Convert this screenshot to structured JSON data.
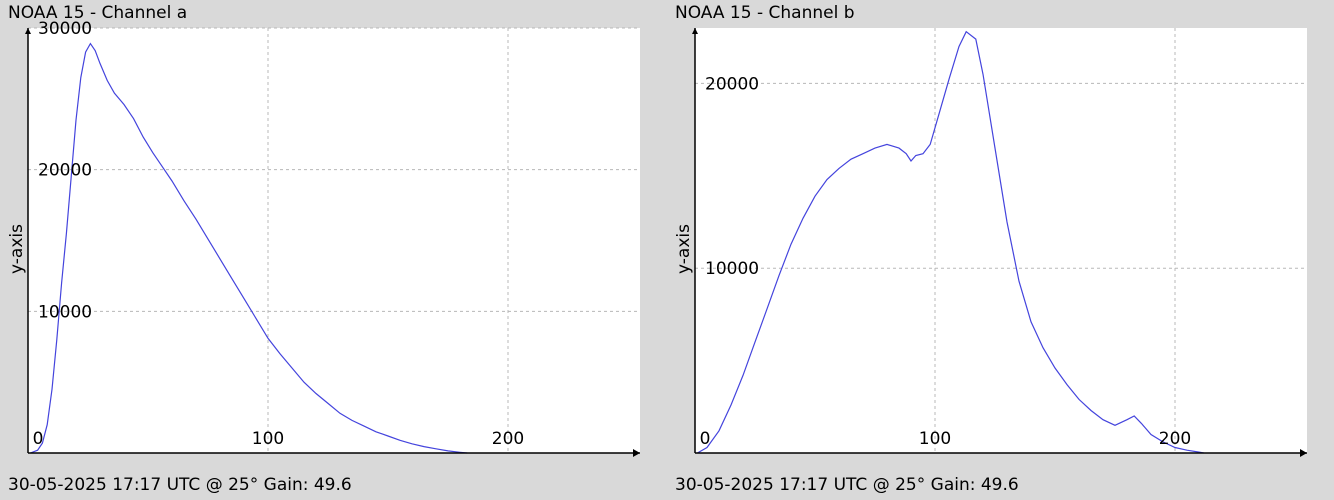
{
  "charts": [
    {
      "title": "NOAA 15 - Channel a",
      "footer": "30-05-2025 17:17 UTC @ 25° Gain: 49.6",
      "ylabel": "y-axis"
    },
    {
      "title": "NOAA 15 - Channel b",
      "footer": "30-05-2025 17:17 UTC @ 25° Gain: 49.6",
      "ylabel": "y-axis"
    }
  ],
  "chart_data": [
    {
      "type": "line",
      "title": "NOAA 15 - Channel a",
      "ylabel": "y-axis",
      "xlim": [
        0,
        255
      ],
      "ylim": [
        0,
        30000
      ],
      "xticks": [
        0,
        100,
        200
      ],
      "yticks": [
        10000,
        20000,
        30000
      ],
      "xtick_labels": [
        "0",
        "100",
        "200"
      ],
      "ytick_labels": [
        "10000",
        "20000",
        "30000"
      ],
      "grid": true,
      "line_color": "#4444dd",
      "points": [
        [
          1,
          0
        ],
        [
          4,
          200
        ],
        [
          6,
          700
        ],
        [
          8,
          2000
        ],
        [
          10,
          4500
        ],
        [
          12,
          8000
        ],
        [
          14,
          12000
        ],
        [
          16,
          15500
        ],
        [
          18,
          19500
        ],
        [
          20,
          23500
        ],
        [
          22,
          26500
        ],
        [
          24,
          28300
        ],
        [
          26,
          28900
        ],
        [
          28,
          28400
        ],
        [
          30,
          27500
        ],
        [
          33,
          26300
        ],
        [
          36,
          25400
        ],
        [
          40,
          24600
        ],
        [
          44,
          23600
        ],
        [
          48,
          22300
        ],
        [
          52,
          21200
        ],
        [
          56,
          20200
        ],
        [
          60,
          19200
        ],
        [
          65,
          17800
        ],
        [
          70,
          16500
        ],
        [
          75,
          15100
        ],
        [
          80,
          13700
        ],
        [
          85,
          12300
        ],
        [
          90,
          10900
        ],
        [
          95,
          9500
        ],
        [
          100,
          8100
        ],
        [
          105,
          7000
        ],
        [
          110,
          6000
        ],
        [
          115,
          5000
        ],
        [
          120,
          4200
        ],
        [
          125,
          3500
        ],
        [
          130,
          2800
        ],
        [
          135,
          2300
        ],
        [
          140,
          1900
        ],
        [
          145,
          1500
        ],
        [
          150,
          1200
        ],
        [
          155,
          900
        ],
        [
          160,
          650
        ],
        [
          165,
          450
        ],
        [
          170,
          300
        ],
        [
          175,
          150
        ],
        [
          180,
          50
        ],
        [
          183,
          0
        ]
      ]
    },
    {
      "type": "line",
      "title": "NOAA 15 - Channel b",
      "ylabel": "y-axis",
      "xlim": [
        0,
        255
      ],
      "ylim": [
        0,
        23000
      ],
      "xticks": [
        0,
        100,
        200
      ],
      "yticks": [
        10000,
        20000
      ],
      "xtick_labels": [
        "0",
        "100",
        "200"
      ],
      "ytick_labels": [
        "10000",
        "20000"
      ],
      "grid": true,
      "line_color": "#4444dd",
      "points": [
        [
          1,
          0
        ],
        [
          5,
          300
        ],
        [
          10,
          1200
        ],
        [
          15,
          2600
        ],
        [
          20,
          4200
        ],
        [
          25,
          6000
        ],
        [
          30,
          7800
        ],
        [
          35,
          9600
        ],
        [
          40,
          11300
        ],
        [
          45,
          12700
        ],
        [
          50,
          13900
        ],
        [
          55,
          14800
        ],
        [
          60,
          15400
        ],
        [
          65,
          15900
        ],
        [
          70,
          16200
        ],
        [
          75,
          16500
        ],
        [
          80,
          16700
        ],
        [
          85,
          16500
        ],
        [
          88,
          16200
        ],
        [
          90,
          15800
        ],
        [
          92,
          16100
        ],
        [
          95,
          16200
        ],
        [
          98,
          16700
        ],
        [
          102,
          18500
        ],
        [
          106,
          20300
        ],
        [
          110,
          22000
        ],
        [
          113,
          22800
        ],
        [
          117,
          22400
        ],
        [
          120,
          20500
        ],
        [
          125,
          16500
        ],
        [
          130,
          12500
        ],
        [
          135,
          9300
        ],
        [
          140,
          7100
        ],
        [
          145,
          5700
        ],
        [
          150,
          4600
        ],
        [
          155,
          3700
        ],
        [
          160,
          2900
        ],
        [
          165,
          2300
        ],
        [
          170,
          1800
        ],
        [
          175,
          1500
        ],
        [
          180,
          1800
        ],
        [
          183,
          2000
        ],
        [
          186,
          1600
        ],
        [
          190,
          1000
        ],
        [
          195,
          600
        ],
        [
          200,
          300
        ],
        [
          205,
          150
        ],
        [
          210,
          50
        ],
        [
          212,
          0
        ]
      ]
    }
  ]
}
